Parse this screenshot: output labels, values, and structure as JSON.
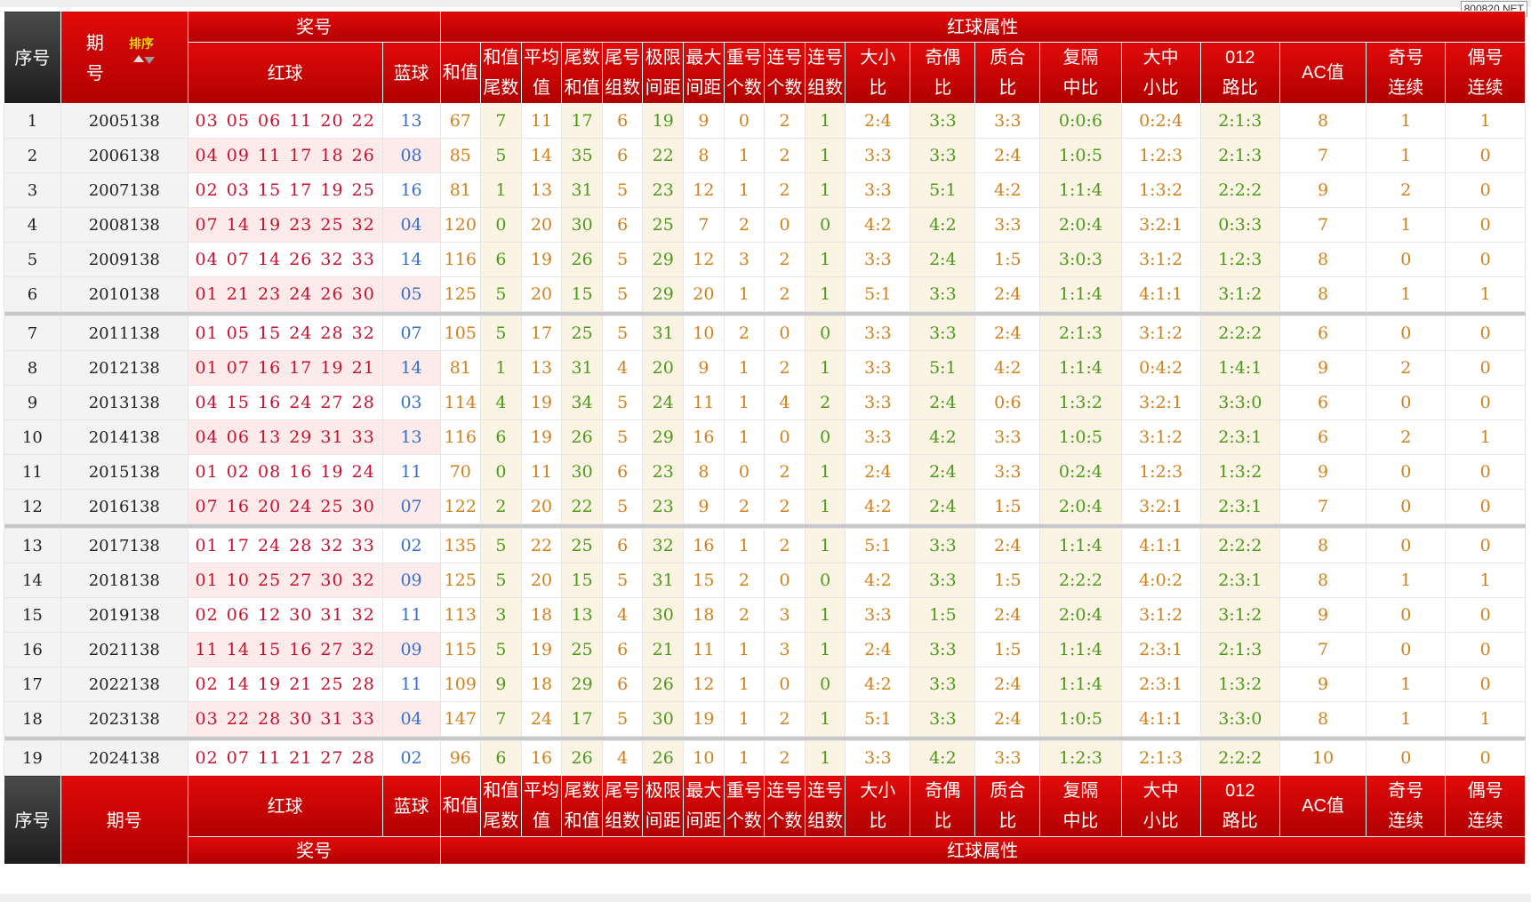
{
  "watermark": "800820.NET",
  "header": {
    "seq": "序号",
    "period_a": "期",
    "period_b": "号",
    "period_full": "期号",
    "sort": "排序",
    "award": "奖号",
    "attr": "红球属性",
    "red": "红球",
    "blue": "蓝球",
    "cols": [
      [
        "和值",
        ""
      ],
      [
        "和值",
        "尾数"
      ],
      [
        "平均",
        "值"
      ],
      [
        "尾数",
        "和值"
      ],
      [
        "尾号",
        "组数"
      ],
      [
        "极限",
        "间距"
      ],
      [
        "最大",
        "间距"
      ],
      [
        "重号",
        "个数"
      ],
      [
        "连号",
        "个数"
      ],
      [
        "连号",
        "组数"
      ],
      [
        "大小",
        "比"
      ],
      [
        "奇偶",
        "比"
      ],
      [
        "质合",
        "比"
      ],
      [
        "复隔",
        "中比"
      ],
      [
        "大中",
        "小比"
      ],
      [
        "012",
        "路比"
      ],
      [
        "AC值",
        ""
      ],
      [
        "奇号",
        "连续"
      ],
      [
        "偶号",
        "连续"
      ]
    ]
  },
  "rows": [
    {
      "seq": "1",
      "period": "2005138",
      "red": "03 05 06 11 20 22",
      "blue": "13",
      "vals": [
        "67",
        "7",
        "11",
        "17",
        "6",
        "19",
        "9",
        "0",
        "2",
        "1",
        "2:4",
        "3:3",
        "3:3",
        "0:0:6",
        "0:2:4",
        "2:1:3",
        "8",
        "1",
        "1"
      ]
    },
    {
      "seq": "2",
      "period": "2006138",
      "red": "04 09 11 17 18 26",
      "blue": "08",
      "vals": [
        "85",
        "5",
        "14",
        "35",
        "6",
        "22",
        "8",
        "1",
        "2",
        "1",
        "3:3",
        "3:3",
        "2:4",
        "1:0:5",
        "1:2:3",
        "2:1:3",
        "7",
        "1",
        "0"
      ]
    },
    {
      "seq": "3",
      "period": "2007138",
      "red": "02 03 15 17 19 25",
      "blue": "16",
      "vals": [
        "81",
        "1",
        "13",
        "31",
        "5",
        "23",
        "12",
        "1",
        "2",
        "1",
        "3:3",
        "5:1",
        "4:2",
        "1:1:4",
        "1:3:2",
        "2:2:2",
        "9",
        "2",
        "0"
      ]
    },
    {
      "seq": "4",
      "period": "2008138",
      "red": "07 14 19 23 25 32",
      "blue": "04",
      "vals": [
        "120",
        "0",
        "20",
        "30",
        "6",
        "25",
        "7",
        "2",
        "0",
        "0",
        "4:2",
        "4:2",
        "3:3",
        "2:0:4",
        "3:2:1",
        "0:3:3",
        "7",
        "1",
        "0"
      ]
    },
    {
      "seq": "5",
      "period": "2009138",
      "red": "04 07 14 26 32 33",
      "blue": "14",
      "vals": [
        "116",
        "6",
        "19",
        "26",
        "5",
        "29",
        "12",
        "3",
        "2",
        "1",
        "3:3",
        "2:4",
        "1:5",
        "3:0:3",
        "3:1:2",
        "1:2:3",
        "8",
        "0",
        "0"
      ]
    },
    {
      "seq": "6",
      "period": "2010138",
      "red": "01 21 23 24 26 30",
      "blue": "05",
      "vals": [
        "125",
        "5",
        "20",
        "15",
        "5",
        "29",
        "20",
        "1",
        "2",
        "1",
        "5:1",
        "3:3",
        "2:4",
        "1:1:4",
        "4:1:1",
        "3:1:2",
        "8",
        "1",
        "1"
      ]
    },
    {
      "seq": "7",
      "period": "2011138",
      "red": "01 05 15 24 28 32",
      "blue": "07",
      "vals": [
        "105",
        "5",
        "17",
        "25",
        "5",
        "31",
        "10",
        "2",
        "0",
        "0",
        "3:3",
        "3:3",
        "2:4",
        "2:1:3",
        "3:1:2",
        "2:2:2",
        "6",
        "0",
        "0"
      ]
    },
    {
      "seq": "8",
      "period": "2012138",
      "red": "01 07 16 17 19 21",
      "blue": "14",
      "vals": [
        "81",
        "1",
        "13",
        "31",
        "4",
        "20",
        "9",
        "1",
        "2",
        "1",
        "3:3",
        "5:1",
        "4:2",
        "1:1:4",
        "0:4:2",
        "1:4:1",
        "9",
        "2",
        "0"
      ]
    },
    {
      "seq": "9",
      "period": "2013138",
      "red": "04 15 16 24 27 28",
      "blue": "03",
      "vals": [
        "114",
        "4",
        "19",
        "34",
        "5",
        "24",
        "11",
        "1",
        "4",
        "2",
        "3:3",
        "2:4",
        "0:6",
        "1:3:2",
        "3:2:1",
        "3:3:0",
        "6",
        "0",
        "0"
      ]
    },
    {
      "seq": "10",
      "period": "2014138",
      "red": "04 06 13 29 31 33",
      "blue": "13",
      "vals": [
        "116",
        "6",
        "19",
        "26",
        "5",
        "29",
        "16",
        "1",
        "0",
        "0",
        "3:3",
        "4:2",
        "3:3",
        "1:0:5",
        "3:1:2",
        "2:3:1",
        "6",
        "2",
        "1"
      ]
    },
    {
      "seq": "11",
      "period": "2015138",
      "red": "01 02 08 16 19 24",
      "blue": "11",
      "vals": [
        "70",
        "0",
        "11",
        "30",
        "6",
        "23",
        "8",
        "0",
        "2",
        "1",
        "2:4",
        "2:4",
        "3:3",
        "0:2:4",
        "1:2:3",
        "1:3:2",
        "9",
        "0",
        "0"
      ]
    },
    {
      "seq": "12",
      "period": "2016138",
      "red": "07 16 20 24 25 30",
      "blue": "07",
      "vals": [
        "122",
        "2",
        "20",
        "22",
        "5",
        "23",
        "9",
        "2",
        "2",
        "1",
        "4:2",
        "2:4",
        "1:5",
        "2:0:4",
        "3:2:1",
        "2:3:1",
        "7",
        "0",
        "0"
      ]
    },
    {
      "seq": "13",
      "period": "2017138",
      "red": "01 17 24 28 32 33",
      "blue": "02",
      "vals": [
        "135",
        "5",
        "22",
        "25",
        "6",
        "32",
        "16",
        "1",
        "2",
        "1",
        "5:1",
        "3:3",
        "2:4",
        "1:1:4",
        "4:1:1",
        "2:2:2",
        "8",
        "0",
        "0"
      ]
    },
    {
      "seq": "14",
      "period": "2018138",
      "red": "01 10 25 27 30 32",
      "blue": "09",
      "vals": [
        "125",
        "5",
        "20",
        "15",
        "5",
        "31",
        "15",
        "2",
        "0",
        "0",
        "4:2",
        "3:3",
        "1:5",
        "2:2:2",
        "4:0:2",
        "2:3:1",
        "8",
        "1",
        "1"
      ]
    },
    {
      "seq": "15",
      "period": "2019138",
      "red": "02 06 12 30 31 32",
      "blue": "11",
      "vals": [
        "113",
        "3",
        "18",
        "13",
        "4",
        "30",
        "18",
        "2",
        "3",
        "1",
        "3:3",
        "1:5",
        "2:4",
        "2:0:4",
        "3:1:2",
        "3:1:2",
        "9",
        "0",
        "0"
      ]
    },
    {
      "seq": "16",
      "period": "2021138",
      "red": "11 14 15 16 27 32",
      "blue": "09",
      "vals": [
        "115",
        "5",
        "19",
        "25",
        "6",
        "21",
        "11",
        "1",
        "3",
        "1",
        "2:4",
        "3:3",
        "1:5",
        "1:1:4",
        "2:3:1",
        "2:1:3",
        "7",
        "0",
        "0"
      ]
    },
    {
      "seq": "17",
      "period": "2022138",
      "red": "02 14 19 21 25 28",
      "blue": "11",
      "vals": [
        "109",
        "9",
        "18",
        "29",
        "6",
        "26",
        "12",
        "1",
        "0",
        "0",
        "4:2",
        "3:3",
        "2:4",
        "1:1:4",
        "2:3:1",
        "1:3:2",
        "9",
        "1",
        "0"
      ]
    },
    {
      "seq": "18",
      "period": "2023138",
      "red": "03 22 28 30 31 33",
      "blue": "04",
      "vals": [
        "147",
        "7",
        "24",
        "17",
        "5",
        "30",
        "19",
        "1",
        "2",
        "1",
        "5:1",
        "3:3",
        "2:4",
        "1:0:5",
        "4:1:1",
        "3:3:0",
        "8",
        "1",
        "1"
      ]
    },
    {
      "seq": "19",
      "period": "2024138",
      "red": "02 07 11 21 27 28",
      "blue": "02",
      "vals": [
        "96",
        "6",
        "16",
        "26",
        "4",
        "26",
        "10",
        "1",
        "2",
        "1",
        "3:3",
        "4:2",
        "3:3",
        "1:2:3",
        "2:1:3",
        "2:2:2",
        "10",
        "0",
        "0"
      ]
    }
  ]
}
